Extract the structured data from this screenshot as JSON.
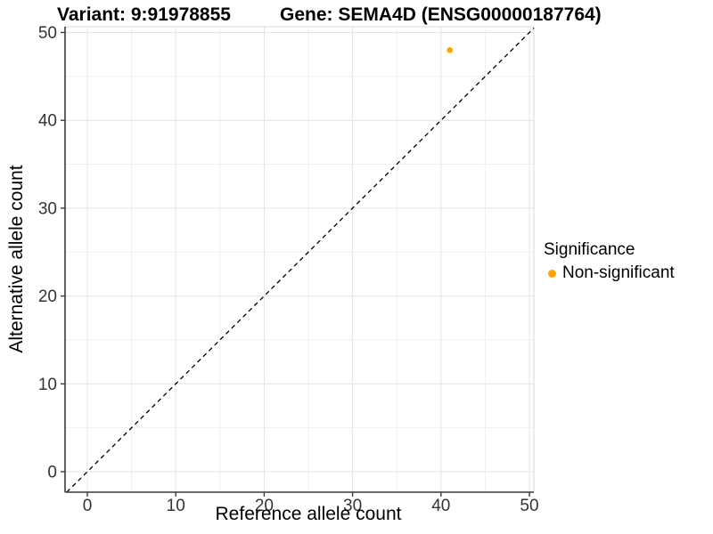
{
  "title": {
    "variant": "Variant: 9:91978855",
    "gene": "Gene: SEMA4D (ENSG00000187764)"
  },
  "chart_data": {
    "type": "scatter",
    "title": "Variant: 9:91978855   Gene: SEMA4D (ENSG00000187764)",
    "xlabel": "Reference allele count",
    "ylabel": "Alternative allele count",
    "xlim": [
      0,
      50
    ],
    "ylim": [
      0,
      50
    ],
    "x_ticks": [
      0,
      10,
      20,
      30,
      40,
      50
    ],
    "y_ticks": [
      0,
      10,
      20,
      30,
      40,
      50
    ],
    "x_minor_ticks": [
      5,
      15,
      25,
      35,
      45
    ],
    "y_minor_ticks": [
      5,
      15,
      25,
      35,
      45
    ],
    "grid": true,
    "points": [
      {
        "x": 41,
        "y": 48,
        "series": "Non-significant"
      }
    ],
    "reference_line": {
      "description": "y = x identity line",
      "style": "dashed"
    },
    "legend": {
      "title": "Significance",
      "position": "right",
      "entries": [
        {
          "label": "Non-significant",
          "color": "#FFA500"
        }
      ]
    }
  },
  "colors": {
    "point": "#FFA500",
    "grid_major": "#E4E4E4",
    "grid_minor": "#F0F0F0",
    "axis_line": "#3A3A3A",
    "panel_border": "#D8D8D8",
    "tick_label": "#333333",
    "reference_line": "#000000",
    "title_text": "#000000"
  }
}
